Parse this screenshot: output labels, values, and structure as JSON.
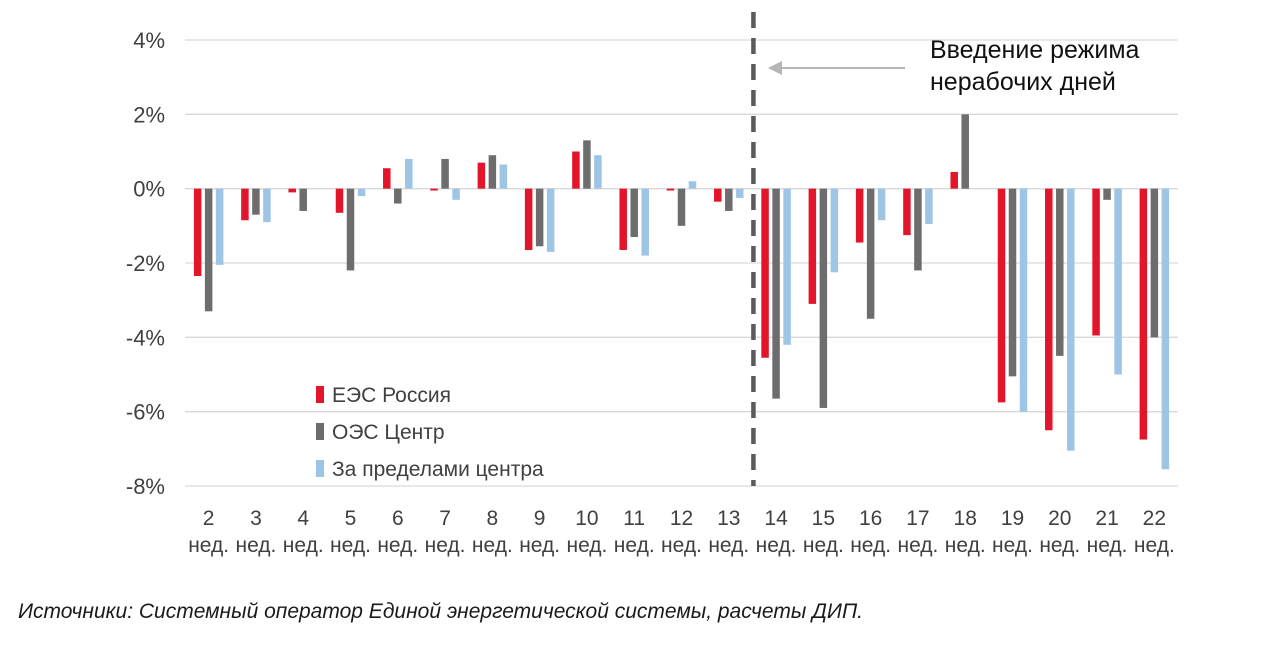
{
  "chart_data": {
    "type": "bar",
    "categories": [
      "2",
      "3",
      "4",
      "5",
      "6",
      "7",
      "8",
      "9",
      "10",
      "11",
      "12",
      "13",
      "14",
      "15",
      "16",
      "17",
      "18",
      "19",
      "20",
      "21",
      "22"
    ],
    "category_suffix": "нед.",
    "series": [
      {
        "name": "ЕЭС Россия",
        "color": "#e3152b",
        "values": [
          -2.35,
          -0.85,
          -0.1,
          -0.65,
          0.55,
          -0.05,
          0.7,
          -1.65,
          1.0,
          -1.65,
          -0.05,
          -0.35,
          -4.55,
          -3.1,
          -1.45,
          -1.25,
          0.45,
          -5.75,
          -6.5,
          -3.95,
          -6.75
        ]
      },
      {
        "name": "ОЭС Центр",
        "color": "#6d6d6d",
        "values": [
          -3.3,
          -0.7,
          -0.6,
          -2.2,
          -0.4,
          0.8,
          0.9,
          -1.55,
          1.3,
          -1.3,
          -1.0,
          -0.6,
          -5.65,
          -5.9,
          -3.5,
          -2.2,
          2.0,
          -5.05,
          -4.5,
          -0.3,
          -4.0
        ]
      },
      {
        "name": "За пределами центра",
        "color": "#9ec4e6",
        "values": [
          -2.05,
          -0.9,
          0.0,
          -0.2,
          0.8,
          -0.3,
          0.65,
          -1.7,
          0.9,
          -1.8,
          0.2,
          -0.25,
          -4.2,
          -2.25,
          -0.85,
          -0.95,
          0.0,
          -6.0,
          -7.05,
          -5.0,
          -7.55
        ]
      }
    ],
    "ylim": [
      -8,
      4
    ],
    "y_ticks": [
      "4%",
      "2%",
      "0%",
      "-2%",
      "-4%",
      "-6%",
      "-8%"
    ],
    "grid": true,
    "legend_position": "bottom-left",
    "annotation": {
      "lines": [
        "Введение режима",
        "нерабочих дней"
      ],
      "after_category": "13"
    },
    "gridline_color": "#d9d9d9",
    "text_color": "#404040"
  },
  "source_note": "Источники: Системный оператор Единой энергетической системы, расчеты ДИП."
}
